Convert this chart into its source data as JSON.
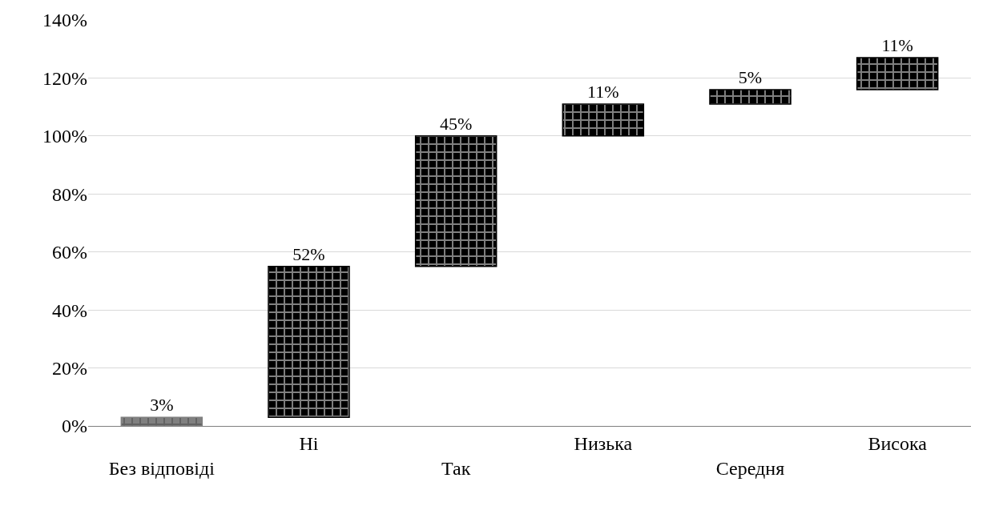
{
  "chart_data": {
    "type": "bar",
    "categories": [
      "Без відповіді",
      "Ні",
      "Так",
      "Низька",
      "Середня",
      "Висока"
    ],
    "values": [
      3,
      52,
      45,
      11,
      5,
      11
    ],
    "base": [
      0,
      3,
      55,
      100,
      111,
      116
    ],
    "colors": [
      "#808080",
      "#000000",
      "#000000",
      "#000000",
      "#000000",
      "#000000"
    ],
    "value_labels": [
      "3%",
      "52%",
      "45%",
      "11%",
      "5%",
      "11%"
    ],
    "ylim": [
      0,
      140
    ],
    "yticks": [
      {
        "value": 0,
        "label": "0%"
      },
      {
        "value": 20,
        "label": "20%"
      },
      {
        "value": 40,
        "label": "40%"
      },
      {
        "value": 60,
        "label": "60%"
      },
      {
        "value": 80,
        "label": "80%"
      },
      {
        "value": 100,
        "label": "100%"
      },
      {
        "value": 120,
        "label": "120%"
      },
      {
        "value": 140,
        "label": "140%"
      }
    ],
    "grid": "y"
  }
}
